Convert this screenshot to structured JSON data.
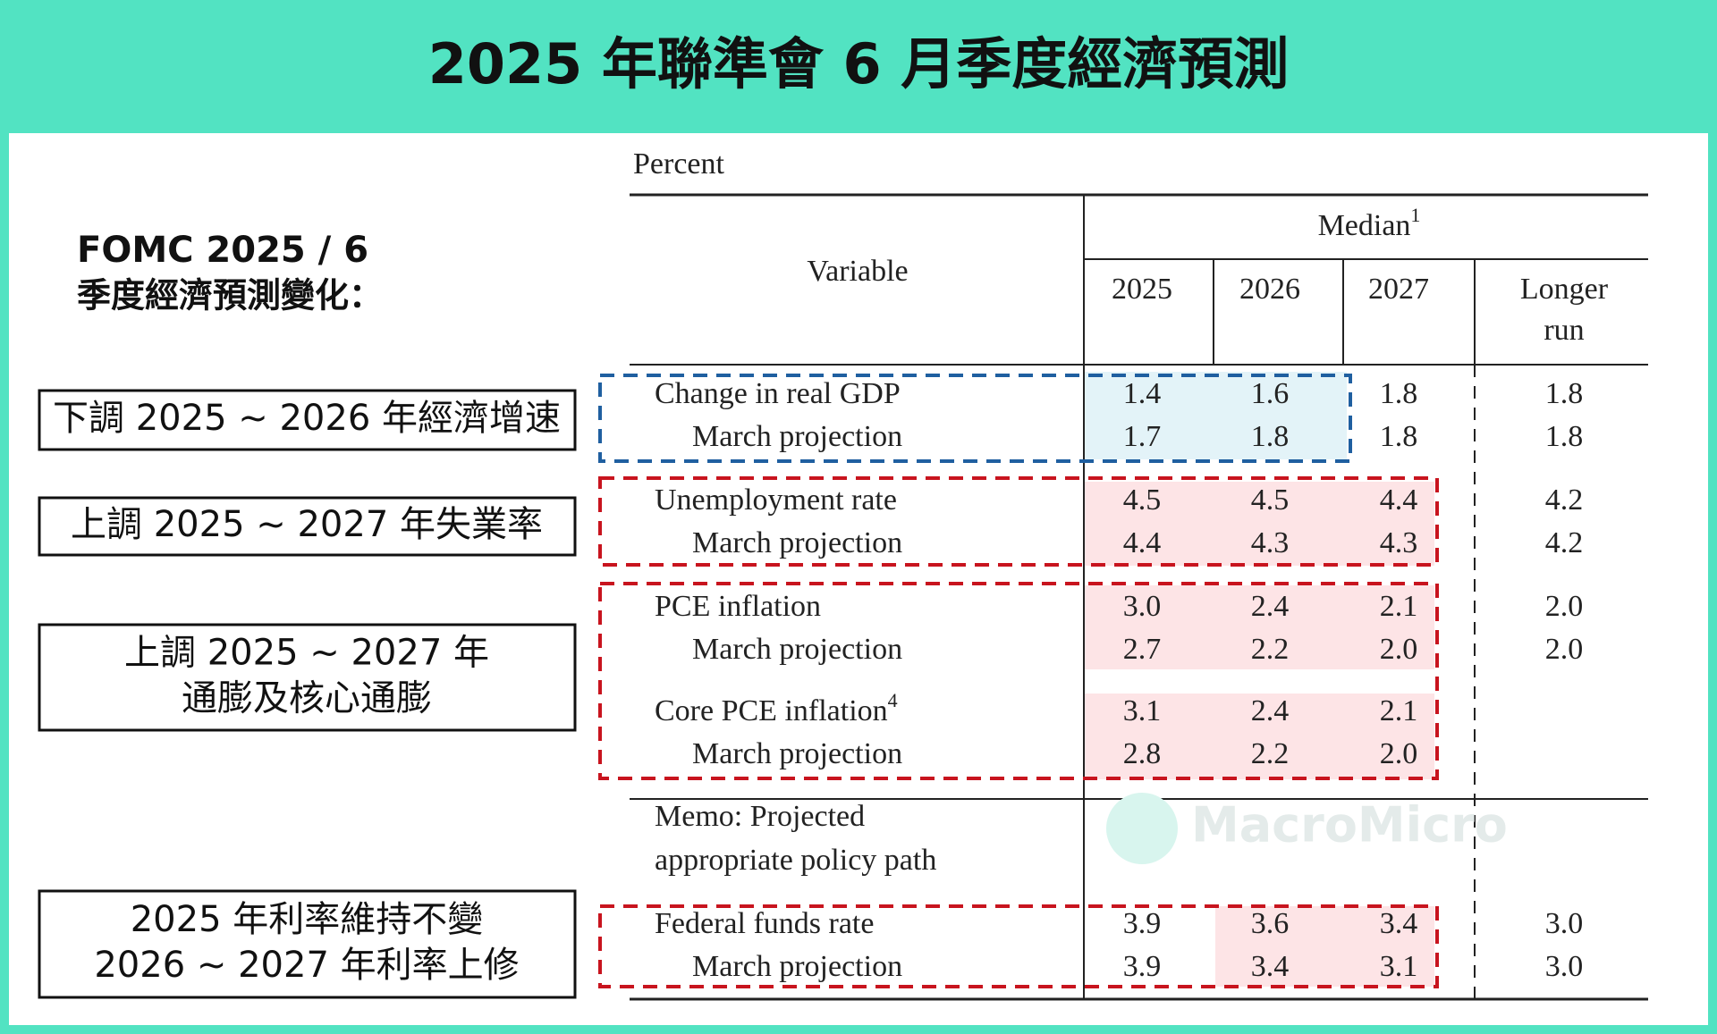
{
  "title": "2025 年聯準會 6 月季度經濟預測",
  "subtitle": [
    "FOMC 2025 / 6",
    "季度經濟預測變化："
  ],
  "annotations": [
    [
      "下調 2025 ~ 2026 年經濟增速"
    ],
    [
      "上調 2025 ~ 2027 年失業率"
    ],
    [
      "上調 2025 ~ 2027 年",
      "通膨及核心通膨"
    ],
    [
      "2025 年利率維持不變",
      "2026 ~ 2027 年利率上修"
    ]
  ],
  "table": {
    "unit": "Percent",
    "variable_header": "Variable",
    "median_header": "Median",
    "median_note": "1",
    "columns": [
      "2025",
      "2026",
      "2027"
    ],
    "longer_run": [
      "Longer",
      "run"
    ],
    "rows": [
      {
        "label": "Change in real GDP",
        "values": [
          "1.4",
          "1.6",
          "1.8",
          "1.8"
        ]
      },
      {
        "label": "March projection",
        "values": [
          "1.7",
          "1.8",
          "1.8",
          "1.8"
        ]
      },
      {
        "label": "Unemployment rate",
        "values": [
          "4.5",
          "4.5",
          "4.4",
          "4.2"
        ]
      },
      {
        "label": "March projection",
        "values": [
          "4.4",
          "4.3",
          "4.3",
          "4.2"
        ]
      },
      {
        "label": "PCE inflation",
        "values": [
          "3.0",
          "2.4",
          "2.1",
          "2.0"
        ]
      },
      {
        "label": "March projection",
        "values": [
          "2.7",
          "2.2",
          "2.0",
          "2.0"
        ]
      },
      {
        "label": "Core PCE inflation",
        "note": "4",
        "values": [
          "3.1",
          "2.4",
          "2.1"
        ]
      },
      {
        "label": "March projection",
        "values": [
          "2.8",
          "2.2",
          "2.0"
        ]
      },
      {
        "label": "Federal funds rate",
        "values": [
          "3.9",
          "3.6",
          "3.4",
          "3.0"
        ]
      },
      {
        "label": "March projection",
        "values": [
          "3.9",
          "3.4",
          "3.1",
          "3.0"
        ]
      }
    ],
    "memo": [
      "Memo: Projected",
      "appropriate policy path"
    ]
  },
  "watermark": "MacroMicro"
}
